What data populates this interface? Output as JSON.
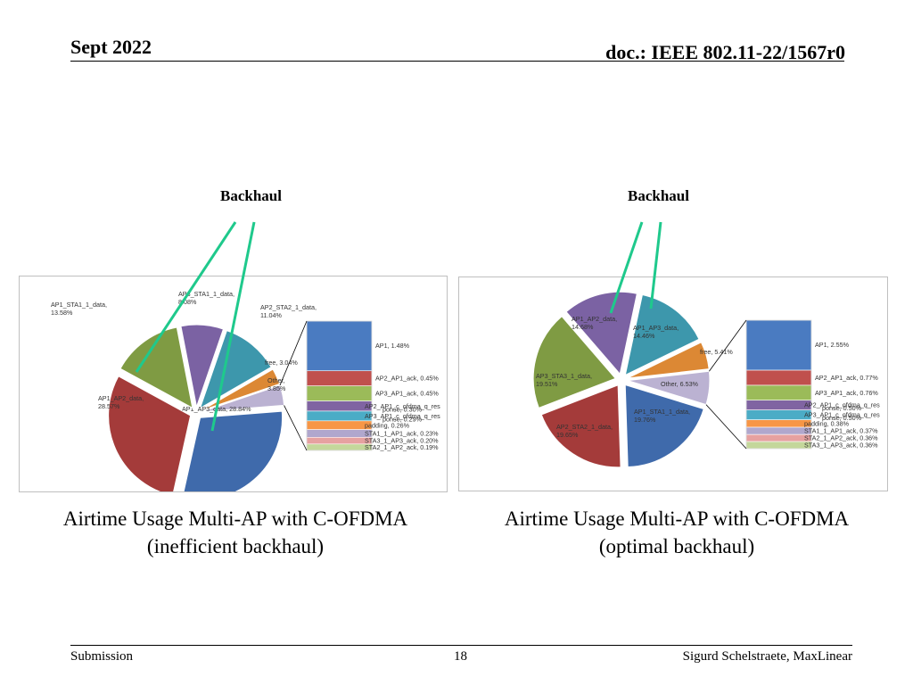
{
  "header": {
    "date": "Sept 2022",
    "doc": "doc.: IEEE 802.11-22/1567r0"
  },
  "footer": {
    "left": "Submission",
    "page": "18",
    "author": "Sigurd Schelstraete, MaxLinear"
  },
  "annotations": {
    "backhaul_left": "Backhaul",
    "backhaul_right": "Backhaul"
  },
  "captions": [
    {
      "line1": "Airtime Usage Multi-AP with C-OFDMA",
      "line2": "(inefficient backhaul)"
    },
    {
      "line1": "Airtime Usage Multi-AP with C-OFDMA",
      "line2": "(optimal backhaul)"
    }
  ],
  "colors": {
    "accent_line": "#1fc98c"
  },
  "chart_data": [
    {
      "type": "pie",
      "title": "",
      "slices": [
        {
          "name": "AP3_STA1_1_data",
          "value": 8.08,
          "label_lines": [
            "AP3_STA1_1_data,",
            "8.08%"
          ],
          "color": "#7b62a3"
        },
        {
          "name": "AP2_STA2_1_data",
          "value": 11.04,
          "label_lines": [
            "AP2_STA2_1_data,",
            "11.04%"
          ],
          "color": "#3d97ac"
        },
        {
          "name": "free",
          "value": 3.04,
          "label_lines": [
            "free, 3.04%"
          ],
          "color": "#dc8834"
        },
        {
          "name": "Other",
          "value": 3.85,
          "label_lines": [
            "Other,",
            "3.85%"
          ],
          "color": "#bbb2d2"
        },
        {
          "name": "AP1_AP3_data",
          "value": 28.84,
          "label_lines": [
            "AP1_AP3_data, 28.84%"
          ],
          "color": "#3f6aab"
        },
        {
          "name": "AP1_AP2_data",
          "value": 28.57,
          "label_lines": [
            "AP1_AP2_data,",
            "28.57%"
          ],
          "color": "#a43b3a"
        },
        {
          "name": "AP1_STA1_1_data",
          "value": 13.58,
          "label_lines": [
            "AP1_STA1_1_data,",
            "13.58%"
          ],
          "color": "#7f9b43"
        }
      ],
      "breakdown": [
        {
          "label": "AP1, 1.48%",
          "value": 1.48,
          "color": "#4a7bc1"
        },
        {
          "label": "AP2_AP1_ack, 0.45%",
          "value": 0.45,
          "color": "#c0504d"
        },
        {
          "label": "AP3_AP1_ack, 0.45%",
          "value": 0.45,
          "color": "#9bbb59"
        },
        {
          "label": "AP2_AP1_c_ofdma_q_res",
          "value": 0.3,
          "color": "#8064a2"
        },
        {
          "label": "AP3_AP1_c_ofdma_q_res",
          "value": 0.29,
          "color": "#4bacc6"
        },
        {
          "label": "padding, 0.26%",
          "value": 0.26,
          "color": "#f79646"
        },
        {
          "label": "STA1_1_AP1_ack, 0.23%",
          "value": 0.23,
          "color": "#b0a7cd"
        },
        {
          "label": "STA3_1_AP3_ack, 0.20%",
          "value": 0.2,
          "color": "#e6a1a0"
        },
        {
          "label": "STA2_1_AP2_ack, 0.19%",
          "value": 0.19,
          "color": "#c4d79b"
        }
      ],
      "breakdown_overlays": [
        "ponse, 0.30%",
        "ponse, 0.29%"
      ]
    },
    {
      "type": "pie",
      "title": "",
      "slices": [
        {
          "name": "AP1_AP3_data",
          "value": 14.46,
          "label_lines": [
            "AP1_AP3_data,",
            "14.46%"
          ],
          "color": "#3d97ac"
        },
        {
          "name": "free",
          "value": 5.41,
          "label_lines": [
            "free, 5.41%"
          ],
          "color": "#dc8834"
        },
        {
          "name": "Other",
          "value": 6.53,
          "label_lines": [
            "Other, 6.53%"
          ],
          "color": "#bbb2d2"
        },
        {
          "name": "AP1_STA1_1_data",
          "value": 19.76,
          "label_lines": [
            "AP1_STA1_1_data,",
            "19.76%"
          ],
          "color": "#3f6aab"
        },
        {
          "name": "AP2_STA2_1_data",
          "value": 19.65,
          "label_lines": [
            "AP2_STA2_1_data,",
            "19.65%"
          ],
          "color": "#a43b3a"
        },
        {
          "name": "AP3_STA3_1_data",
          "value": 19.51,
          "label_lines": [
            "AP3_STA3_1_data,",
            "19.51%"
          ],
          "color": "#7f9b43"
        },
        {
          "name": "AP1_AP2_data",
          "value": 14.68,
          "label_lines": [
            "AP1_AP2_data,",
            "14.68%"
          ],
          "color": "#7b62a3"
        }
      ],
      "breakdown": [
        {
          "label": "AP1, 2.55%",
          "value": 2.55,
          "color": "#4a7bc1"
        },
        {
          "label": "AP2_AP1_ack, 0.77%",
          "value": 0.77,
          "color": "#c0504d"
        },
        {
          "label": "AP3_AP1_ack, 0.76%",
          "value": 0.76,
          "color": "#9bbb59"
        },
        {
          "label": "AP2_AP1_c_ofdma_q_res",
          "value": 0.5,
          "color": "#8064a2"
        },
        {
          "label": "AP3_AP1_c_ofdma_q_res",
          "value": 0.5,
          "color": "#4bacc6"
        },
        {
          "label": "padding, 0.38%",
          "value": 0.38,
          "color": "#f79646"
        },
        {
          "label": "STA1_1_AP1_ack, 0.37%",
          "value": 0.37,
          "color": "#b0a7cd"
        },
        {
          "label": "STA2_1_AP2_ack, 0.36%",
          "value": 0.36,
          "color": "#e6a1a0"
        },
        {
          "label": "STA3_1_AP3_ack, 0.36%",
          "value": 0.36,
          "color": "#c4d79b"
        }
      ],
      "breakdown_overlays": [
        "ponse, 0.50%",
        "ponse, 0.50%"
      ]
    }
  ]
}
